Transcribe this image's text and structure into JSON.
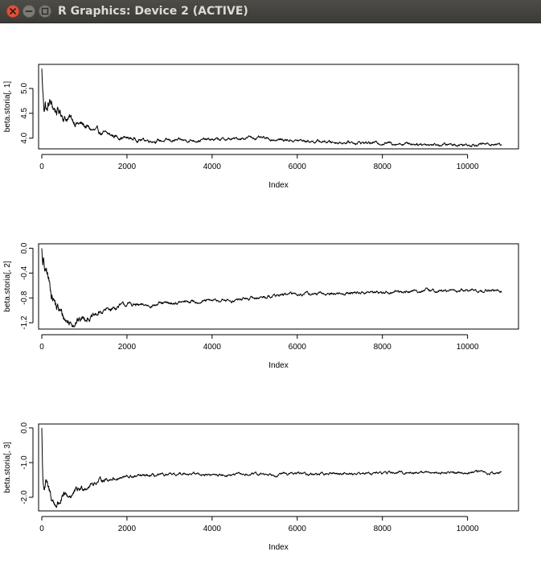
{
  "window": {
    "title": "R Graphics: Device 2 (ACTIVE)",
    "icons": [
      "close-icon",
      "minimize-icon",
      "maximize-icon"
    ]
  },
  "chart_data": [
    {
      "type": "line",
      "title": "",
      "xlabel": "Index",
      "ylabel": "beta.storia[, 1]",
      "xlim": [
        0,
        10800
      ],
      "ylim": [
        3.85,
        5.42
      ],
      "xticks": [
        0,
        2000,
        4000,
        6000,
        8000,
        10000
      ],
      "xtick_labels": [
        "0",
        "2000",
        "4000",
        "6000",
        "8000",
        "10000"
      ],
      "yticks": [
        4.0,
        4.5,
        5.0
      ],
      "ytick_labels": [
        "4.0",
        "4.5",
        "5.0"
      ],
      "start": 5.4,
      "noise": 0.035,
      "points": [
        [
          1,
          5.4
        ],
        [
          15,
          5.05
        ],
        [
          30,
          4.85
        ],
        [
          50,
          4.6
        ],
        [
          80,
          4.75
        ],
        [
          120,
          4.55
        ],
        [
          180,
          4.72
        ],
        [
          250,
          4.62
        ],
        [
          350,
          4.55
        ],
        [
          450,
          4.5
        ],
        [
          550,
          4.42
        ],
        [
          700,
          4.38
        ],
        [
          850,
          4.3
        ],
        [
          1000,
          4.25
        ],
        [
          1200,
          4.15
        ],
        [
          1400,
          4.1
        ],
        [
          1600,
          4.06
        ],
        [
          1800,
          4.03
        ],
        [
          2000,
          4.0
        ],
        [
          2300,
          3.97
        ],
        [
          2700,
          3.95
        ],
        [
          3200,
          3.95
        ],
        [
          3600,
          3.96
        ],
        [
          4000,
          3.97
        ],
        [
          4500,
          3.98
        ],
        [
          4900,
          4.02
        ],
        [
          5300,
          3.98
        ],
        [
          5800,
          3.96
        ],
        [
          6300,
          3.94
        ],
        [
          6900,
          3.92
        ],
        [
          7500,
          3.91
        ],
        [
          8200,
          3.9
        ],
        [
          8800,
          3.89
        ],
        [
          9300,
          3.87
        ],
        [
          9800,
          3.87
        ],
        [
          10300,
          3.88
        ],
        [
          10800,
          3.88
        ]
      ]
    },
    {
      "type": "line",
      "title": "",
      "xlabel": "Index",
      "ylabel": "beta.storia[, 2]",
      "xlim": [
        0,
        10800
      ],
      "ylim": [
        -1.25,
        0.02
      ],
      "xticks": [
        0,
        2000,
        4000,
        6000,
        8000,
        10000
      ],
      "xtick_labels": [
        "0",
        "2000",
        "4000",
        "6000",
        "8000",
        "10000"
      ],
      "yticks": [
        -1.2,
        -0.8,
        -0.4,
        0.0
      ],
      "ytick_labels": [
        "-1.2",
        "-0.8",
        "-0.4",
        "0.0"
      ],
      "start": 0.0,
      "noise": 0.03,
      "points": [
        [
          1,
          0.0
        ],
        [
          20,
          -0.3
        ],
        [
          50,
          -0.25
        ],
        [
          80,
          -0.45
        ],
        [
          120,
          -0.4
        ],
        [
          180,
          -0.6
        ],
        [
          250,
          -0.75
        ],
        [
          350,
          -0.95
        ],
        [
          450,
          -1.05
        ],
        [
          550,
          -1.15
        ],
        [
          650,
          -1.2
        ],
        [
          750,
          -1.18
        ],
        [
          900,
          -1.15
        ],
        [
          1050,
          -1.1
        ],
        [
          1200,
          -1.12
        ],
        [
          1350,
          -1.05
        ],
        [
          1500,
          -1.0
        ],
        [
          1700,
          -0.96
        ],
        [
          1900,
          -0.92
        ],
        [
          2100,
          -0.9
        ],
        [
          2300,
          -0.93
        ],
        [
          2600,
          -0.91
        ],
        [
          3000,
          -0.89
        ],
        [
          3500,
          -0.86
        ],
        [
          4000,
          -0.85
        ],
        [
          4500,
          -0.84
        ],
        [
          5000,
          -0.8
        ],
        [
          5500,
          -0.76
        ],
        [
          6000,
          -0.73
        ],
        [
          6500,
          -0.74
        ],
        [
          7000,
          -0.73
        ],
        [
          7500,
          -0.71
        ],
        [
          8000,
          -0.71
        ],
        [
          8500,
          -0.7
        ],
        [
          9000,
          -0.68
        ],
        [
          9500,
          -0.69
        ],
        [
          10000,
          -0.68
        ],
        [
          10800,
          -0.69
        ]
      ]
    },
    {
      "type": "line",
      "title": "",
      "xlabel": "Index",
      "ylabel": "beta.storia[, 3]",
      "xlim": [
        0,
        10800
      ],
      "ylim": [
        -2.3,
        0.02
      ],
      "xticks": [
        0,
        2000,
        4000,
        6000,
        8000,
        10000
      ],
      "xtick_labels": [
        "0",
        "2000",
        "4000",
        "6000",
        "8000",
        "10000"
      ],
      "yticks": [
        -2.0,
        -1.0,
        0.0
      ],
      "ytick_labels": [
        "-2.0",
        "-1.0",
        "0.0"
      ],
      "start": 0.0,
      "noise": 0.045,
      "points": [
        [
          1,
          0.0
        ],
        [
          20,
          -1.4
        ],
        [
          50,
          -1.7
        ],
        [
          100,
          -1.55
        ],
        [
          150,
          -1.85
        ],
        [
          200,
          -1.95
        ],
        [
          300,
          -2.2
        ],
        [
          380,
          -2.18
        ],
        [
          450,
          -2.05
        ],
        [
          600,
          -2.0
        ],
        [
          800,
          -1.85
        ],
        [
          1000,
          -1.7
        ],
        [
          1200,
          -1.6
        ],
        [
          1400,
          -1.5
        ],
        [
          1700,
          -1.45
        ],
        [
          2000,
          -1.42
        ],
        [
          2300,
          -1.4
        ],
        [
          2700,
          -1.38
        ],
        [
          3000,
          -1.37
        ],
        [
          3200,
          -1.35
        ],
        [
          3400,
          -1.3
        ],
        [
          3700,
          -1.33
        ],
        [
          4000,
          -1.36
        ],
        [
          4500,
          -1.35
        ],
        [
          5000,
          -1.34
        ],
        [
          5500,
          -1.33
        ],
        [
          6000,
          -1.32
        ],
        [
          6500,
          -1.33
        ],
        [
          7000,
          -1.31
        ],
        [
          7500,
          -1.31
        ],
        [
          8000,
          -1.3
        ],
        [
          8500,
          -1.29
        ],
        [
          9000,
          -1.28
        ],
        [
          9500,
          -1.29
        ],
        [
          10000,
          -1.28
        ],
        [
          10800,
          -1.29
        ]
      ]
    }
  ]
}
